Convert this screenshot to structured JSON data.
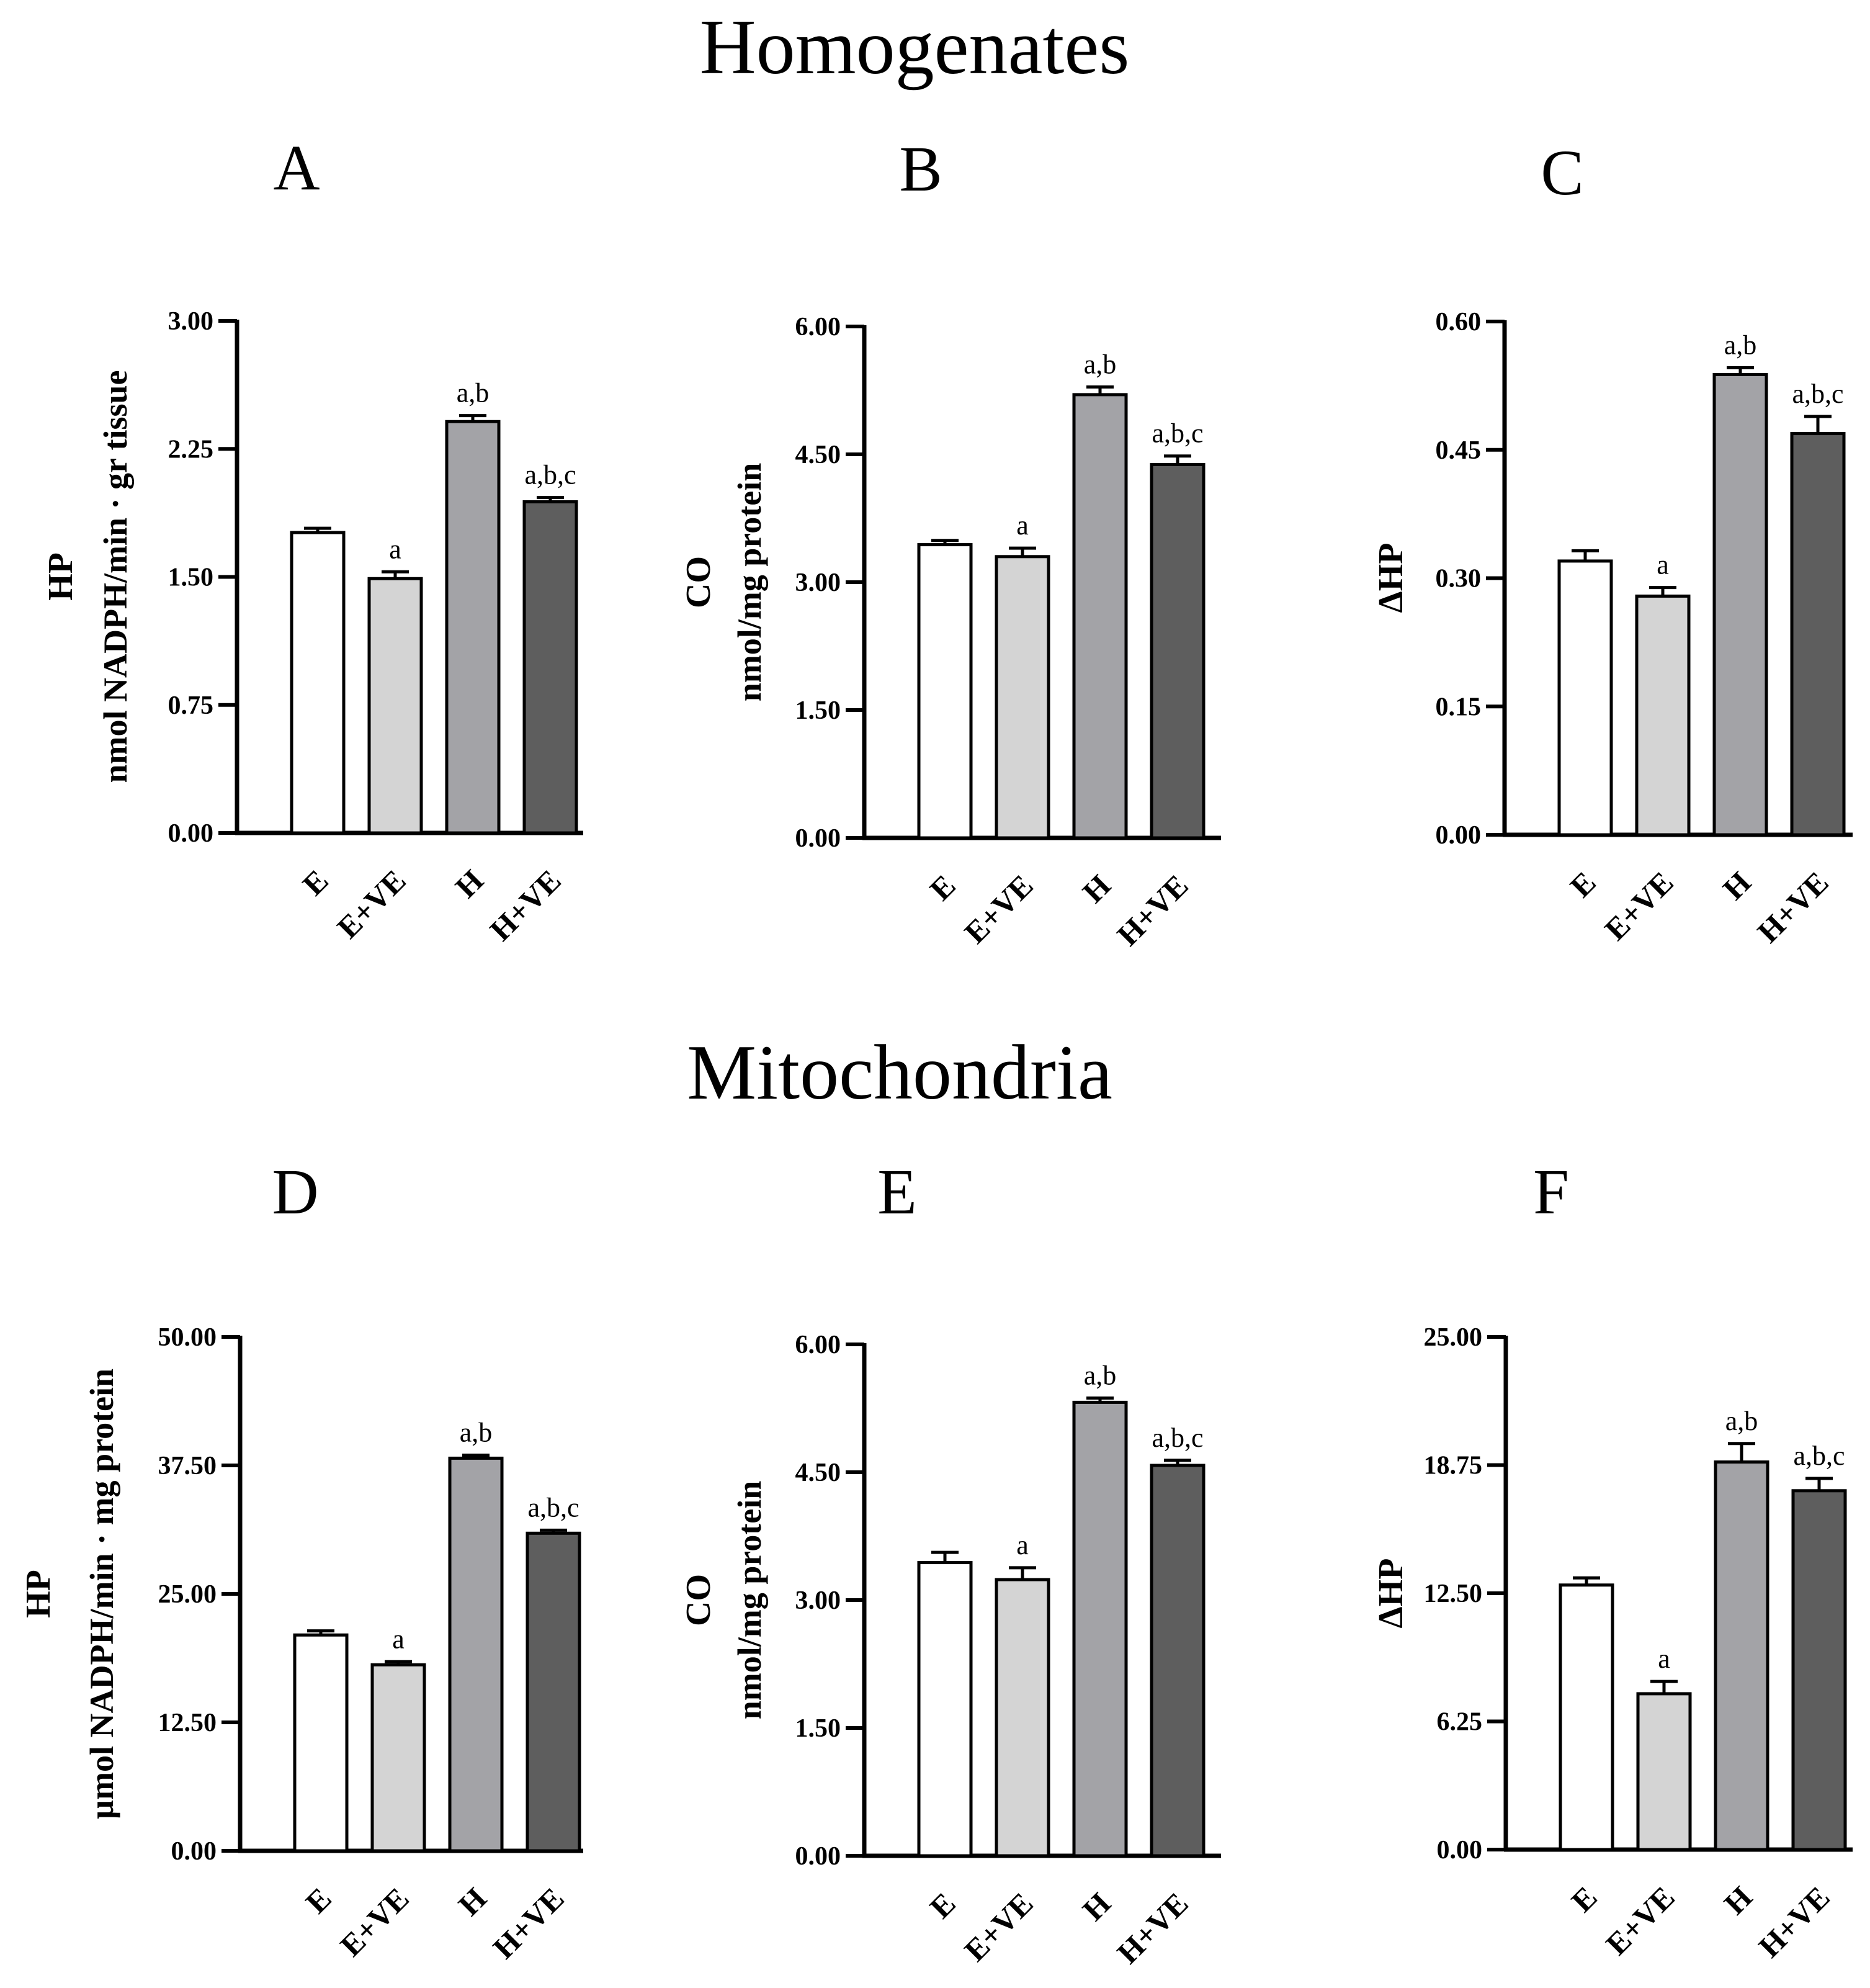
{
  "sections": [
    {
      "title": "Homogenates"
    },
    {
      "title": "Mitochondria"
    }
  ],
  "palette": {
    "E": "#ffffff",
    "E+VE": "#d4d4d4",
    "H": "#a3a3a7",
    "H+VE": "#5e5e5e",
    "ink": "#000000"
  },
  "chart_data": [
    {
      "panel": "A",
      "section": "Homogenates",
      "type": "bar",
      "categories": [
        "E",
        "E+VE",
        "H",
        "H+VE"
      ],
      "values": [
        1.76,
        1.49,
        2.41,
        1.94
      ],
      "errors": [
        0.025,
        0.04,
        0.035,
        0.025
      ],
      "significance": [
        "",
        "a",
        "a,b",
        "a,b,c"
      ],
      "ylabel": "HP",
      "ylabel_units": "nmol NADPH/min · gr tissue",
      "ylim": [
        0,
        3.0
      ],
      "yticks": [
        "0.00",
        "0.75",
        "1.50",
        "2.25",
        "3.00"
      ],
      "ytick_values": [
        0,
        0.75,
        1.5,
        2.25,
        3.0
      ]
    },
    {
      "panel": "B",
      "section": "Homogenates",
      "type": "bar",
      "categories": [
        "E",
        "E+VE",
        "H",
        "H+VE"
      ],
      "values": [
        3.44,
        3.3,
        5.2,
        4.38
      ],
      "errors": [
        0.05,
        0.1,
        0.09,
        0.1
      ],
      "significance": [
        "",
        "a",
        "a,b",
        "a,b,c"
      ],
      "ylabel": "CO",
      "ylabel_units": "nmol/mg protein",
      "ylim": [
        0,
        6.0
      ],
      "yticks": [
        "0.00",
        "1.50",
        "3.00",
        "4.50",
        "6.00"
      ],
      "ytick_values": [
        0,
        1.5,
        3.0,
        4.5,
        6.0
      ]
    },
    {
      "panel": "C",
      "section": "Homogenates",
      "type": "bar",
      "categories": [
        "E",
        "E+VE",
        "H",
        "H+VE"
      ],
      "values": [
        0.32,
        0.279,
        0.538,
        0.469
      ],
      "errors": [
        0.012,
        0.01,
        0.008,
        0.02
      ],
      "significance": [
        "",
        "a",
        "a,b",
        "a,b,c"
      ],
      "ylabel": "ΔHP",
      "ylabel_units": "",
      "ylim": [
        0,
        0.6
      ],
      "yticks": [
        "0.00",
        "0.15",
        "0.30",
        "0.45",
        "0.60"
      ],
      "ytick_values": [
        0,
        0.15,
        0.3,
        0.45,
        0.6
      ]
    },
    {
      "panel": "D",
      "section": "Mitochondria",
      "type": "bar",
      "categories": [
        "E",
        "E+VE",
        "H",
        "H+VE"
      ],
      "values": [
        21.0,
        18.1,
        38.2,
        30.9
      ],
      "errors": [
        0.4,
        0.3,
        0.3,
        0.3
      ],
      "significance": [
        "",
        "a",
        "a,b",
        "a,b,c"
      ],
      "ylabel": "HP",
      "ylabel_units": "µmol NADPH/min · mg protein",
      "ylim": [
        0,
        50
      ],
      "yticks": [
        "0.00",
        "12.50",
        "25.00",
        "37.50",
        "50.00"
      ],
      "ytick_values": [
        0,
        12.5,
        25,
        37.5,
        50
      ]
    },
    {
      "panel": "E",
      "section": "Mitochondria",
      "type": "bar",
      "categories": [
        "E",
        "E+VE",
        "H",
        "H+VE"
      ],
      "values": [
        3.44,
        3.24,
        5.32,
        4.58
      ],
      "errors": [
        0.12,
        0.14,
        0.05,
        0.06
      ],
      "significance": [
        "",
        "a",
        "a,b",
        "a,b,c"
      ],
      "ylabel": "CO",
      "ylabel_units": "nmol/mg protein",
      "ylim": [
        0,
        6.0
      ],
      "yticks": [
        "0.00",
        "1.50",
        "3.00",
        "4.50",
        "6.00"
      ],
      "ytick_values": [
        0,
        1.5,
        3.0,
        4.5,
        6.0
      ]
    },
    {
      "panel": "F",
      "section": "Mitochondria",
      "type": "bar",
      "categories": [
        "E",
        "E+VE",
        "H",
        "H+VE"
      ],
      "values": [
        12.9,
        7.6,
        18.9,
        17.5
      ],
      "errors": [
        0.35,
        0.6,
        0.9,
        0.6
      ],
      "significance": [
        "",
        "a",
        "a,b",
        "a,b,c"
      ],
      "ylabel": "ΔHP",
      "ylabel_units": "",
      "ylim": [
        0,
        25
      ],
      "yticks": [
        "0.00",
        "6.25",
        "12.50",
        "18.75",
        "25.00"
      ],
      "ytick_values": [
        0,
        6.25,
        12.5,
        18.75,
        25
      ]
    }
  ]
}
